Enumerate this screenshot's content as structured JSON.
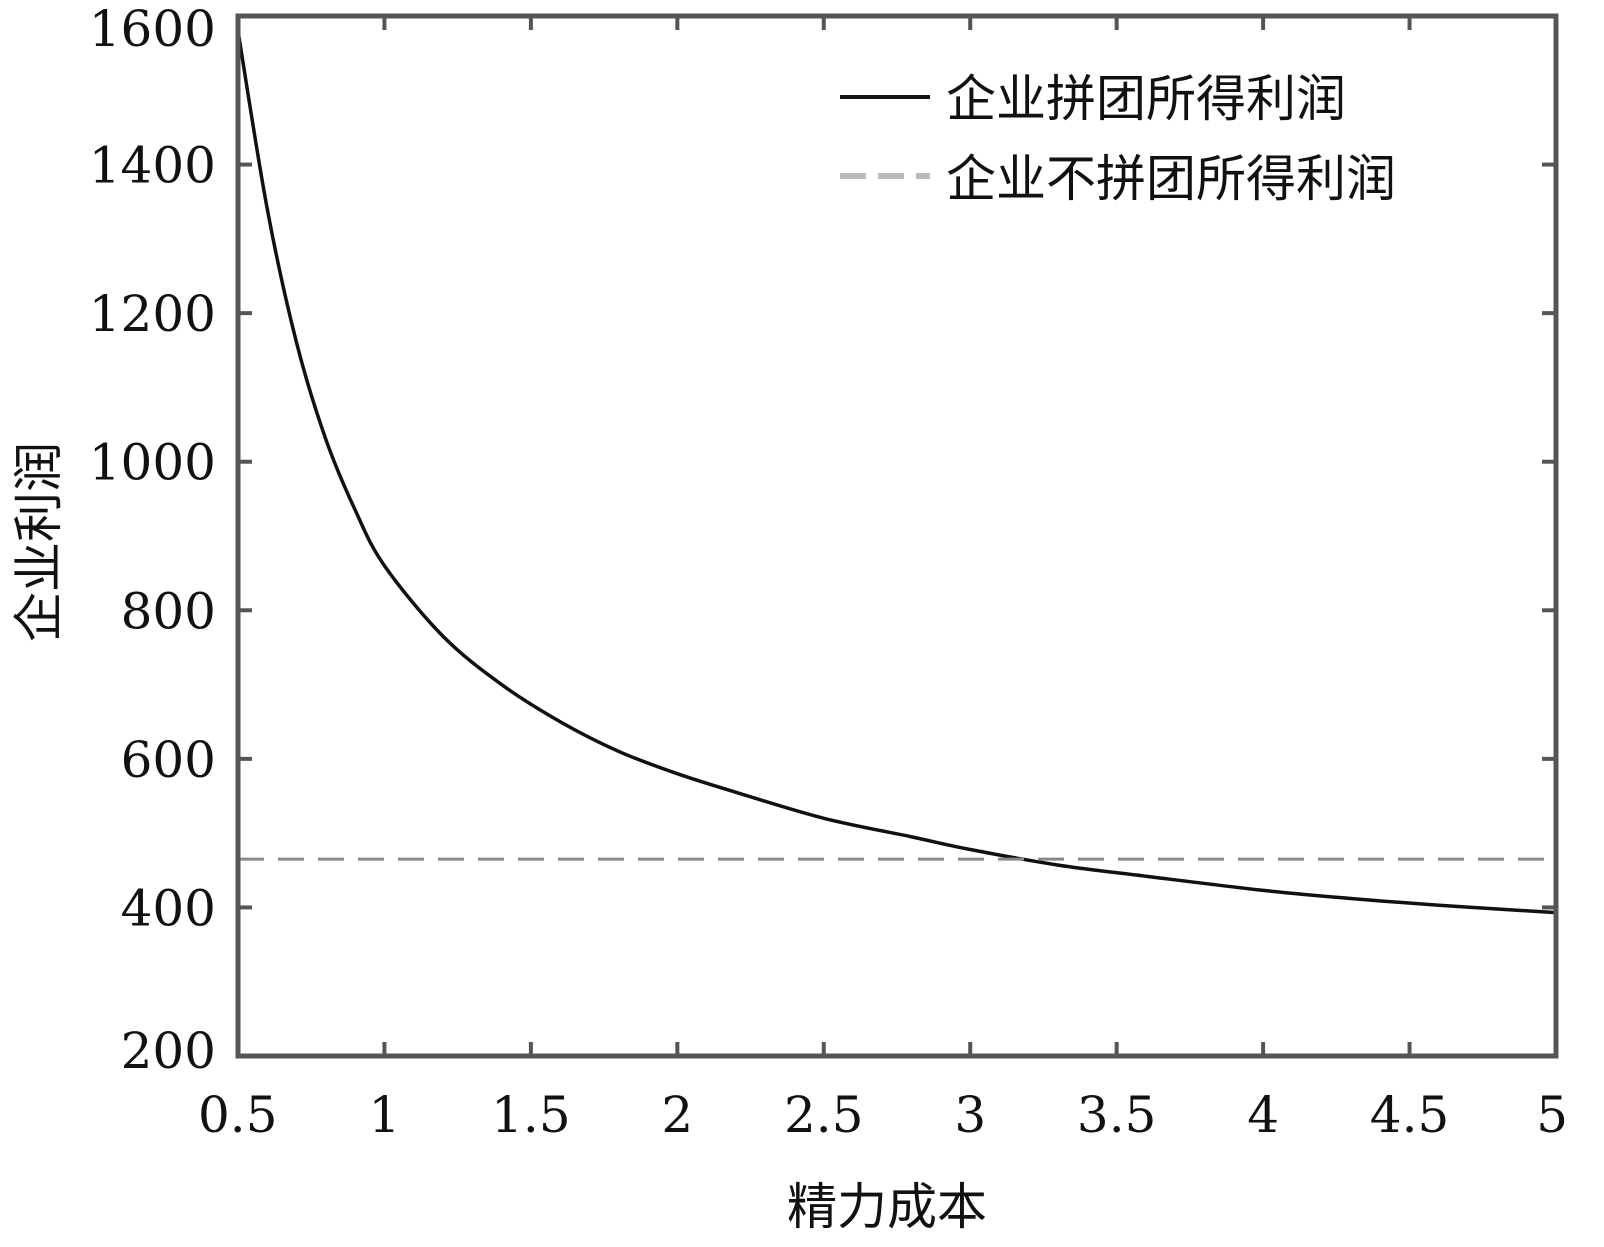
{
  "chart_data": {
    "type": "line",
    "title": "",
    "xlabel": "精力成本",
    "ylabel": "企业利润",
    "xlim": [
      0.5,
      5
    ],
    "ylim": [
      200,
      1600
    ],
    "xticks": [
      "0.5",
      "1",
      "1.5",
      "2",
      "2.5",
      "3",
      "3.5",
      "4",
      "4.5",
      "5"
    ],
    "yticks": [
      "200",
      "400",
      "600",
      "800",
      "1000",
      "1200",
      "1400",
      "1600"
    ],
    "grid": false,
    "legend_position": "top-right",
    "series": [
      {
        "name": "企业拼团所得利润",
        "style": "solid",
        "color": "#111111",
        "x": [
          0.5,
          0.6,
          0.7,
          0.8,
          0.9,
          1.0,
          1.2,
          1.4,
          1.6,
          1.8,
          2.0,
          2.2,
          2.5,
          2.8,
          3.0,
          3.3,
          3.6,
          4.0,
          4.3,
          4.6,
          5.0
        ],
        "y": [
          1580,
          1340,
          1160,
          1030,
          935,
          860,
          765,
          700,
          650,
          610,
          580,
          555,
          520,
          495,
          478,
          457,
          442,
          423,
          412,
          403,
          393
        ]
      },
      {
        "name": "企业不拼团所得利润",
        "style": "dashed",
        "color": "#888888",
        "x": [
          0.5,
          5
        ],
        "y": [
          465,
          465
        ]
      }
    ]
  }
}
